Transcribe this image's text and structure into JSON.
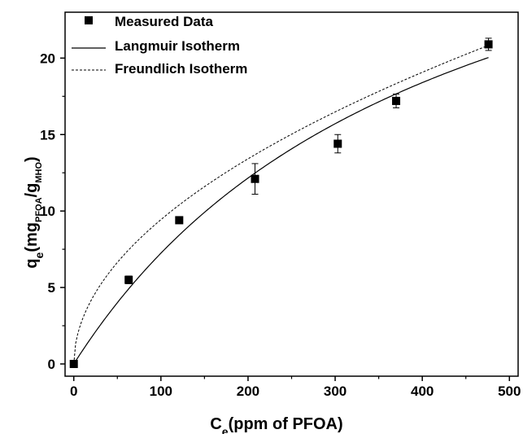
{
  "chart_data": {
    "type": "scatter",
    "xlabel": {
      "main": "C",
      "sub": "e",
      "rest": "(ppm of PFOA)"
    },
    "ylabel": {
      "q": "q",
      "q_sub": "e",
      "open": "(mg",
      "pfoa_sub": "PFOA",
      "slash": "/g",
      "mho_sub": "MHO",
      "close": ")"
    },
    "xlim": [
      -10,
      510
    ],
    "ylim": [
      -0.8,
      23.0
    ],
    "xticks": [
      0,
      100,
      200,
      300,
      400,
      500
    ],
    "yticks": [
      0,
      5,
      10,
      15,
      20
    ],
    "legend_position": "top-left",
    "series": [
      {
        "name": "Measured Data",
        "kind": "points",
        "marker": "square",
        "x": [
          0,
          63,
          121,
          208,
          303,
          370,
          476
        ],
        "y": [
          0,
          5.5,
          9.4,
          12.1,
          14.4,
          17.2,
          20.9
        ],
        "yerr": [
          0,
          0.25,
          0.15,
          1.0,
          0.6,
          0.45,
          0.4
        ]
      },
      {
        "name": "Langmuir Isotherm",
        "kind": "line",
        "style": "solid",
        "model": {
          "form": "langmuir",
          "qmax": 37.8,
          "KL": 0.00237
        },
        "x_range": [
          0,
          476
        ]
      },
      {
        "name": "Freundlich Isotherm",
        "kind": "line",
        "style": "dashed",
        "model": {
          "form": "freundlich",
          "KF": 0.911,
          "n": 1.97
        },
        "x_range": [
          0,
          476
        ]
      }
    ]
  }
}
